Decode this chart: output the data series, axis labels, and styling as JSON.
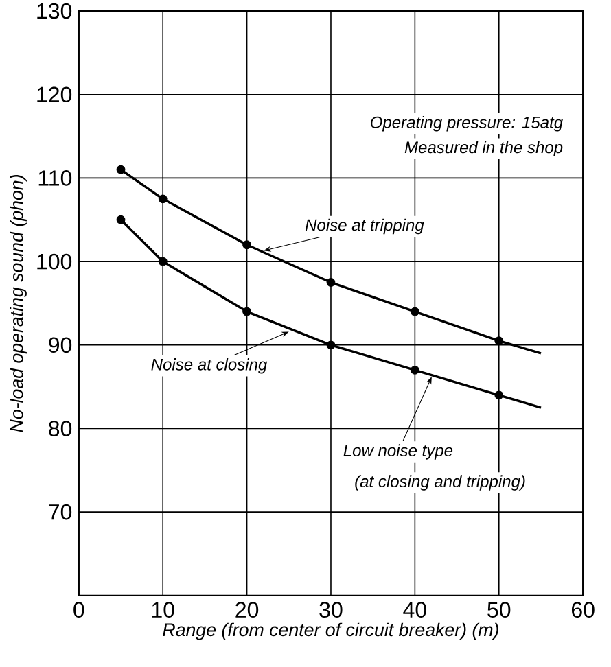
{
  "chart_data": {
    "type": "line",
    "xlabel": "Range (from center of circuit breaker) (m)",
    "ylabel": "No-load operating sound (phon)",
    "xlim": [
      0,
      60
    ],
    "xticks": [
      0,
      10,
      20,
      30,
      40,
      50,
      60
    ],
    "ylim": [
      60,
      130
    ],
    "yticks": [
      70,
      80,
      90,
      100,
      110,
      120,
      130
    ],
    "grid": true,
    "series": [
      {
        "marker": "none",
        "color": "#000000",
        "x": [
          5,
          10,
          20,
          30,
          40,
          50,
          55
        ],
        "values": [
          111,
          107.5,
          102,
          97.5,
          94,
          90.5,
          89
        ]
      },
      {
        "type": "scatter",
        "marker": "circle",
        "color": "#000000",
        "x": [
          5,
          10,
          20,
          30,
          40,
          50
        ],
        "values": [
          111,
          107.5,
          102,
          97.5,
          94,
          90.5
        ]
      },
      {
        "marker": "none",
        "color": "#000000",
        "x": [
          5,
          10,
          20,
          30,
          40,
          50,
          55
        ],
        "values": [
          105,
          100,
          94,
          90,
          87,
          84,
          82.5
        ]
      },
      {
        "type": "scatter",
        "marker": "circle",
        "color": "#000000",
        "x": [
          5,
          10,
          20,
          30,
          40,
          50
        ],
        "values": [
          105,
          100,
          94,
          90,
          87,
          84
        ]
      }
    ],
    "annotations": [
      "Operating pressure: 15atg",
      "Measured in the shop",
      {
        "text": "Noise at tripping",
        "x": 22,
        "y": 101.3
      },
      {
        "text": "Noise at closing",
        "x": 25,
        "y": 91.6
      },
      {
        "text": "Low noise type",
        "x": 42,
        "y": 86.2
      },
      "(at closing and tripping)"
    ]
  }
}
